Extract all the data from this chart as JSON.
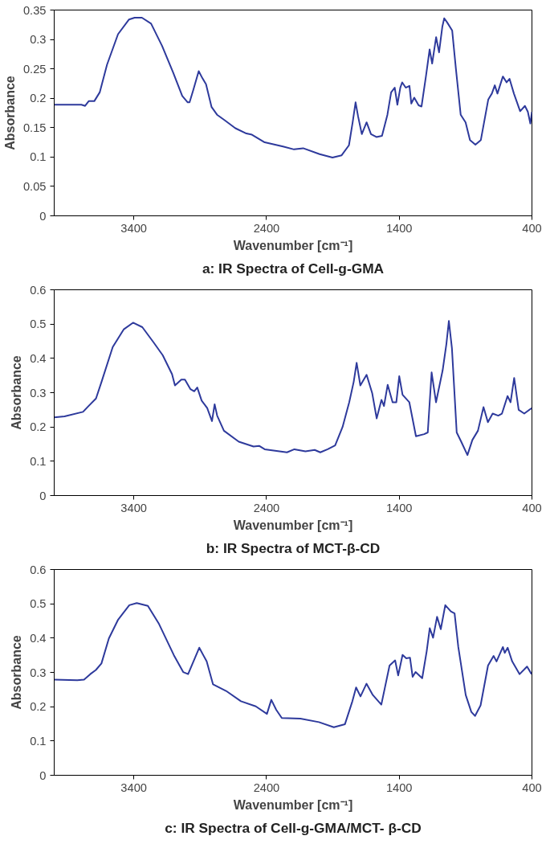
{
  "chart_data": [
    {
      "type": "line",
      "title": "a: IR Spectra of Cell-g-GMA",
      "xlabel": "Wavenumber [cm⁻¹]",
      "ylabel": "Absorbance",
      "xlim": [
        4000,
        400
      ],
      "xticks": [
        3400,
        2400,
        1400,
        400
      ],
      "ylim": [
        0,
        0.35
      ],
      "yticks": [
        0,
        0.05,
        0.1,
        0.15,
        0.2,
        0.25,
        0.3,
        0.35
      ],
      "grid": false,
      "line_style": "solid",
      "series": [
        {
          "color": "#2e3a9c",
          "x": [
            4000,
            3795,
            3767,
            3740,
            3698,
            3657,
            3602,
            3519,
            3436,
            3394,
            3339,
            3270,
            3187,
            3104,
            3035,
            2994,
            2980,
            2952,
            2911,
            2883,
            2856,
            2814,
            2773,
            2718,
            2635,
            2552,
            2510,
            2414,
            2276,
            2193,
            2124,
            2000,
            1903,
            1834,
            1779,
            1751,
            1729,
            1710,
            1682,
            1646,
            1613,
            1572,
            1530,
            1489,
            1461,
            1434,
            1414,
            1392,
            1378,
            1351,
            1323,
            1309,
            1287,
            1254,
            1232,
            1199,
            1171,
            1152,
            1122,
            1100,
            1075,
            1061,
            1039,
            1001,
            973,
            937,
            900,
            867,
            826,
            785,
            729,
            702,
            680,
            660,
            619,
            591,
            569,
            536,
            489,
            453,
            431,
            412,
            400
          ],
          "values": [
            0.189,
            0.189,
            0.187,
            0.195,
            0.195,
            0.21,
            0.257,
            0.309,
            0.334,
            0.337,
            0.337,
            0.327,
            0.289,
            0.244,
            0.204,
            0.193,
            0.193,
            0.214,
            0.246,
            0.234,
            0.224,
            0.185,
            0.172,
            0.163,
            0.149,
            0.14,
            0.138,
            0.125,
            0.118,
            0.113,
            0.115,
            0.105,
            0.099,
            0.103,
            0.12,
            0.159,
            0.193,
            0.169,
            0.139,
            0.159,
            0.139,
            0.134,
            0.136,
            0.172,
            0.21,
            0.218,
            0.189,
            0.218,
            0.227,
            0.218,
            0.221,
            0.191,
            0.201,
            0.188,
            0.186,
            0.237,
            0.283,
            0.259,
            0.304,
            0.278,
            0.322,
            0.336,
            0.329,
            0.315,
            0.25,
            0.172,
            0.159,
            0.129,
            0.121,
            0.129,
            0.198,
            0.208,
            0.222,
            0.208,
            0.237,
            0.227,
            0.233,
            0.208,
            0.178,
            0.187,
            0.177,
            0.157,
            0.177
          ]
        }
      ]
    },
    {
      "type": "line",
      "title": "b: IR Spectra of MCT-β-CD",
      "xlabel": "Wavenumber [cm⁻¹]",
      "ylabel": "Absorbance",
      "xlim": [
        4000,
        400
      ],
      "xticks": [
        3400,
        2400,
        1400,
        400
      ],
      "ylim": [
        0,
        0.6
      ],
      "yticks": [
        0,
        0.1,
        0.2,
        0.3,
        0.4,
        0.5,
        0.6
      ],
      "grid": false,
      "line_style": "solid",
      "series": [
        {
          "color": "#2e3a9c",
          "x": [
            4000,
            3922,
            3783,
            3741,
            3685,
            3643,
            3559,
            3475,
            3406,
            3336,
            3252,
            3182,
            3112,
            3090,
            3042,
            3015,
            2973,
            2945,
            2922,
            2889,
            2847,
            2811,
            2791,
            2772,
            2721,
            2609,
            2498,
            2456,
            2414,
            2246,
            2190,
            2107,
            2037,
            1995,
            1939,
            1883,
            1827,
            1777,
            1743,
            1721,
            1693,
            1646,
            1604,
            1570,
            1534,
            1515,
            1487,
            1450,
            1422,
            1400,
            1375,
            1324,
            1274,
            1212,
            1185,
            1156,
            1123,
            1073,
            1045,
            1026,
            1003,
            967,
            933,
            886,
            849,
            807,
            765,
            732,
            696,
            654,
            626,
            584,
            561,
            534,
            500,
            458,
            402
          ],
          "values": [
            0.228,
            0.231,
            0.244,
            0.261,
            0.283,
            0.332,
            0.433,
            0.485,
            0.504,
            0.491,
            0.447,
            0.409,
            0.354,
            0.321,
            0.338,
            0.338,
            0.31,
            0.304,
            0.315,
            0.277,
            0.255,
            0.217,
            0.266,
            0.233,
            0.189,
            0.157,
            0.143,
            0.145,
            0.135,
            0.126,
            0.135,
            0.129,
            0.133,
            0.126,
            0.135,
            0.146,
            0.2,
            0.272,
            0.332,
            0.387,
            0.321,
            0.352,
            0.299,
            0.225,
            0.279,
            0.261,
            0.323,
            0.272,
            0.272,
            0.348,
            0.294,
            0.272,
            0.173,
            0.179,
            0.184,
            0.359,
            0.272,
            0.365,
            0.441,
            0.509,
            0.43,
            0.184,
            0.157,
            0.118,
            0.162,
            0.189,
            0.258,
            0.214,
            0.239,
            0.233,
            0.239,
            0.29,
            0.272,
            0.343,
            0.25,
            0.239,
            0.255
          ]
        }
      ]
    },
    {
      "type": "line",
      "title": "c: IR Spectra of Cell-g-GMA/MCT- β-CD",
      "xlabel": "Wavenumber [cm⁻¹]",
      "ylabel": "Absorbance",
      "xlim": [
        4000,
        400
      ],
      "xticks": [
        3400,
        2400,
        1400,
        400
      ],
      "ylim": [
        0,
        0.6
      ],
      "yticks": [
        0,
        0.1,
        0.2,
        0.3,
        0.4,
        0.5,
        0.6
      ],
      "grid": false,
      "line_style": "solid",
      "series": [
        {
          "color": "#2e3a9c",
          "x": [
            4000,
            3826,
            3775,
            3728,
            3686,
            3644,
            3588,
            3518,
            3434,
            3378,
            3294,
            3210,
            3098,
            3028,
            2991,
            2957,
            2907,
            2851,
            2803,
            2705,
            2593,
            2481,
            2397,
            2364,
            2327,
            2285,
            2145,
            2005,
            1893,
            1809,
            1753,
            1725,
            1692,
            1647,
            1599,
            1535,
            1473,
            1431,
            1408,
            1375,
            1347,
            1319,
            1299,
            1277,
            1227,
            1193,
            1170,
            1145,
            1115,
            1087,
            1053,
            1011,
            983,
            955,
            899,
            857,
            829,
            787,
            731,
            689,
            667,
            619,
            605,
            583,
            549,
            493,
            437,
            403
          ],
          "values": [
            0.279,
            0.277,
            0.279,
            0.295,
            0.307,
            0.326,
            0.399,
            0.454,
            0.496,
            0.502,
            0.494,
            0.441,
            0.35,
            0.301,
            0.295,
            0.326,
            0.372,
            0.332,
            0.265,
            0.246,
            0.216,
            0.201,
            0.179,
            0.22,
            0.191,
            0.167,
            0.165,
            0.155,
            0.14,
            0.149,
            0.216,
            0.256,
            0.23,
            0.267,
            0.234,
            0.206,
            0.32,
            0.335,
            0.291,
            0.351,
            0.341,
            0.343,
            0.287,
            0.301,
            0.283,
            0.362,
            0.429,
            0.401,
            0.462,
            0.426,
            0.496,
            0.478,
            0.472,
            0.374,
            0.234,
            0.185,
            0.173,
            0.204,
            0.32,
            0.348,
            0.332,
            0.374,
            0.357,
            0.372,
            0.332,
            0.295,
            0.317,
            0.295
          ]
        }
      ]
    }
  ]
}
